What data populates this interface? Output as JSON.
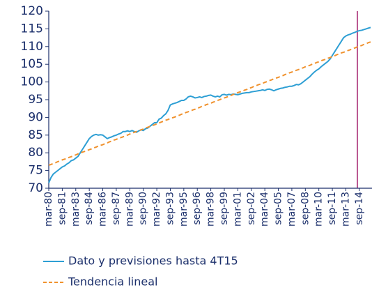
{
  "chart_data": {
    "type": "line",
    "categories": [
      "mar-80",
      null,
      null,
      null,
      null,
      null,
      "sep-81",
      null,
      null,
      null,
      null,
      null,
      "mar-83",
      null,
      null,
      null,
      null,
      null,
      "sep-84",
      null,
      null,
      null,
      null,
      null,
      "mar-86",
      null,
      null,
      null,
      null,
      null,
      "sep-87",
      null,
      null,
      null,
      null,
      null,
      "mar-89",
      null,
      null,
      null,
      null,
      null,
      "sep-90",
      null,
      null,
      null,
      null,
      null,
      "mar-92",
      null,
      null,
      null,
      null,
      null,
      "sep-93",
      null,
      null,
      null,
      null,
      null,
      "mar-95",
      null,
      null,
      null,
      null,
      null,
      "sep-96",
      null,
      null,
      null,
      null,
      null,
      "mar-98",
      null,
      null,
      null,
      null,
      null,
      "sep-99",
      null,
      null,
      null,
      null,
      null,
      "mar-01",
      null,
      null,
      null,
      null,
      null,
      "sep-02",
      null,
      null,
      null,
      null,
      null,
      "mar-04",
      null,
      null,
      null,
      null,
      null,
      "sep-05",
      null,
      null,
      null,
      null,
      null,
      "mar-07",
      null,
      null,
      null,
      null,
      null,
      "sep-08",
      null,
      null,
      null,
      null,
      null,
      "mar-10",
      null,
      null,
      null,
      null,
      null,
      "sep-11",
      null,
      null,
      null,
      null,
      null,
      "mar-13",
      null,
      null,
      null,
      null,
      null,
      "sep-14",
      null,
      null,
      null,
      null,
      null
    ],
    "series": [
      {
        "name": "Dato y previsiones hasta 4T15",
        "color": "#2e9fd4",
        "dash": false,
        "values": [
          71.5,
          73.0,
          74.0,
          74.5,
          75.0,
          75.5,
          76.0,
          76.3,
          76.8,
          77.2,
          77.8,
          78.0,
          78.5,
          79.0,
          80.0,
          81.0,
          82.0,
          83.0,
          84.0,
          84.6,
          85.0,
          85.2,
          85.0,
          85.1,
          85.0,
          84.5,
          84.0,
          84.3,
          84.5,
          84.8,
          85.0,
          85.3,
          85.5,
          86.0,
          86.0,
          86.2,
          86.0,
          86.3,
          86.0,
          85.8,
          86.2,
          86.5,
          86.3,
          86.8,
          87.0,
          87.5,
          88.0,
          88.5,
          88.5,
          89.5,
          89.8,
          90.5,
          91.0,
          92.0,
          93.5,
          93.8,
          94.0,
          94.2,
          94.5,
          94.8,
          94.8,
          95.2,
          95.8,
          96.0,
          95.8,
          95.5,
          95.6,
          95.8,
          95.6,
          95.9,
          96.0,
          96.2,
          96.3,
          96.0,
          95.8,
          96.0,
          95.8,
          96.4,
          96.5,
          96.3,
          96.5,
          96.4,
          96.6,
          96.5,
          96.4,
          96.6,
          96.8,
          96.9,
          97.0,
          97.0,
          97.2,
          97.3,
          97.4,
          97.5,
          97.6,
          97.8,
          97.6,
          97.9,
          98.0,
          97.8,
          97.5,
          97.8,
          98.0,
          98.2,
          98.3,
          98.5,
          98.6,
          98.8,
          98.8,
          99.0,
          99.3,
          99.2,
          99.5,
          100.0,
          100.5,
          101.0,
          101.5,
          102.2,
          102.8,
          103.3,
          103.7,
          104.3,
          104.8,
          105.3,
          105.8,
          106.5,
          107.5,
          108.5,
          109.5,
          110.5,
          111.5,
          112.5,
          113.0,
          113.3,
          113.5,
          113.8,
          114.0,
          114.3,
          114.5,
          114.6,
          114.8,
          115.0,
          115.2,
          115.4
        ]
      },
      {
        "name": "Tendencia lineal",
        "color": "#f0922e",
        "dash": true,
        "values": [
          76.5,
          76.7,
          77.0,
          77.2,
          77.5,
          77.7,
          78.0,
          78.2,
          78.4,
          78.7,
          78.9,
          79.2,
          79.4,
          79.7,
          79.9,
          80.2,
          80.4,
          80.6,
          80.9,
          81.1,
          81.4,
          81.6,
          81.9,
          82.1,
          82.3,
          82.6,
          82.8,
          83.1,
          83.3,
          83.6,
          83.8,
          84.1,
          84.3,
          84.5,
          84.8,
          85.0,
          85.3,
          85.5,
          85.8,
          86.0,
          86.2,
          86.5,
          86.7,
          87.0,
          87.2,
          87.5,
          87.7,
          87.9,
          88.2,
          88.4,
          88.7,
          88.9,
          89.2,
          89.4,
          89.7,
          89.9,
          90.1,
          90.4,
          90.6,
          90.9,
          91.1,
          91.4,
          91.6,
          91.8,
          92.1,
          92.3,
          92.6,
          92.8,
          93.1,
          93.3,
          93.6,
          93.8,
          94.0,
          94.3,
          94.5,
          94.8,
          95.0,
          95.3,
          95.5,
          95.7,
          96.0,
          96.2,
          96.5,
          96.7,
          97.0,
          97.2,
          97.4,
          97.7,
          97.9,
          98.2,
          98.4,
          98.7,
          98.9,
          99.2,
          99.4,
          99.6,
          99.9,
          100.1,
          100.4,
          100.6,
          100.9,
          101.1,
          101.3,
          101.6,
          101.8,
          102.1,
          102.3,
          102.6,
          102.8,
          103.1,
          103.3,
          103.5,
          103.8,
          104.0,
          104.3,
          104.5,
          104.7,
          105.0,
          105.2,
          105.5,
          105.7,
          106.0,
          106.2,
          106.4,
          106.7,
          106.9,
          107.2,
          107.4,
          107.7,
          107.9,
          108.2,
          108.4,
          108.6,
          108.9,
          109.1,
          109.4,
          109.6,
          109.9,
          110.1,
          110.3,
          110.6,
          110.8,
          111.1,
          111.3
        ]
      }
    ],
    "ylim": [
      70,
      120
    ],
    "yticks": [
      70,
      75,
      80,
      85,
      90,
      95,
      100,
      105,
      110,
      115,
      120
    ],
    "grid": false
  }
}
